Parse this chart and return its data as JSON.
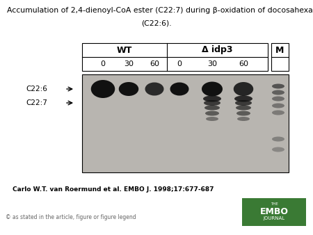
{
  "title_line1": "Accumulation of 2,4-dienoyl-CoA ester (C22:7) during β-oxidation of docosahexaenoic acid",
  "title_line2": "(C22:6).",
  "title_fontsize": 7.8,
  "citation": "Carlo W.T. van Roermund et al. EMBO J. 1998;17:677-687",
  "copyright": "© as stated in the article, figure or figure legend",
  "bg_color": "#ffffff",
  "gel_bg_color": "#b8b5b0",
  "wt_label": "WT",
  "idp3_label": "Δ idp3",
  "m_label": "M",
  "lane_labels": [
    "0",
    "30",
    "60",
    "0",
    "30",
    "60"
  ],
  "c226_label": "C22:6",
  "c227_label": "C22:7",
  "embo_green": "#3a7a34",
  "band_dark": "#111111",
  "band_mid": "#222222",
  "band_light": "#555555"
}
